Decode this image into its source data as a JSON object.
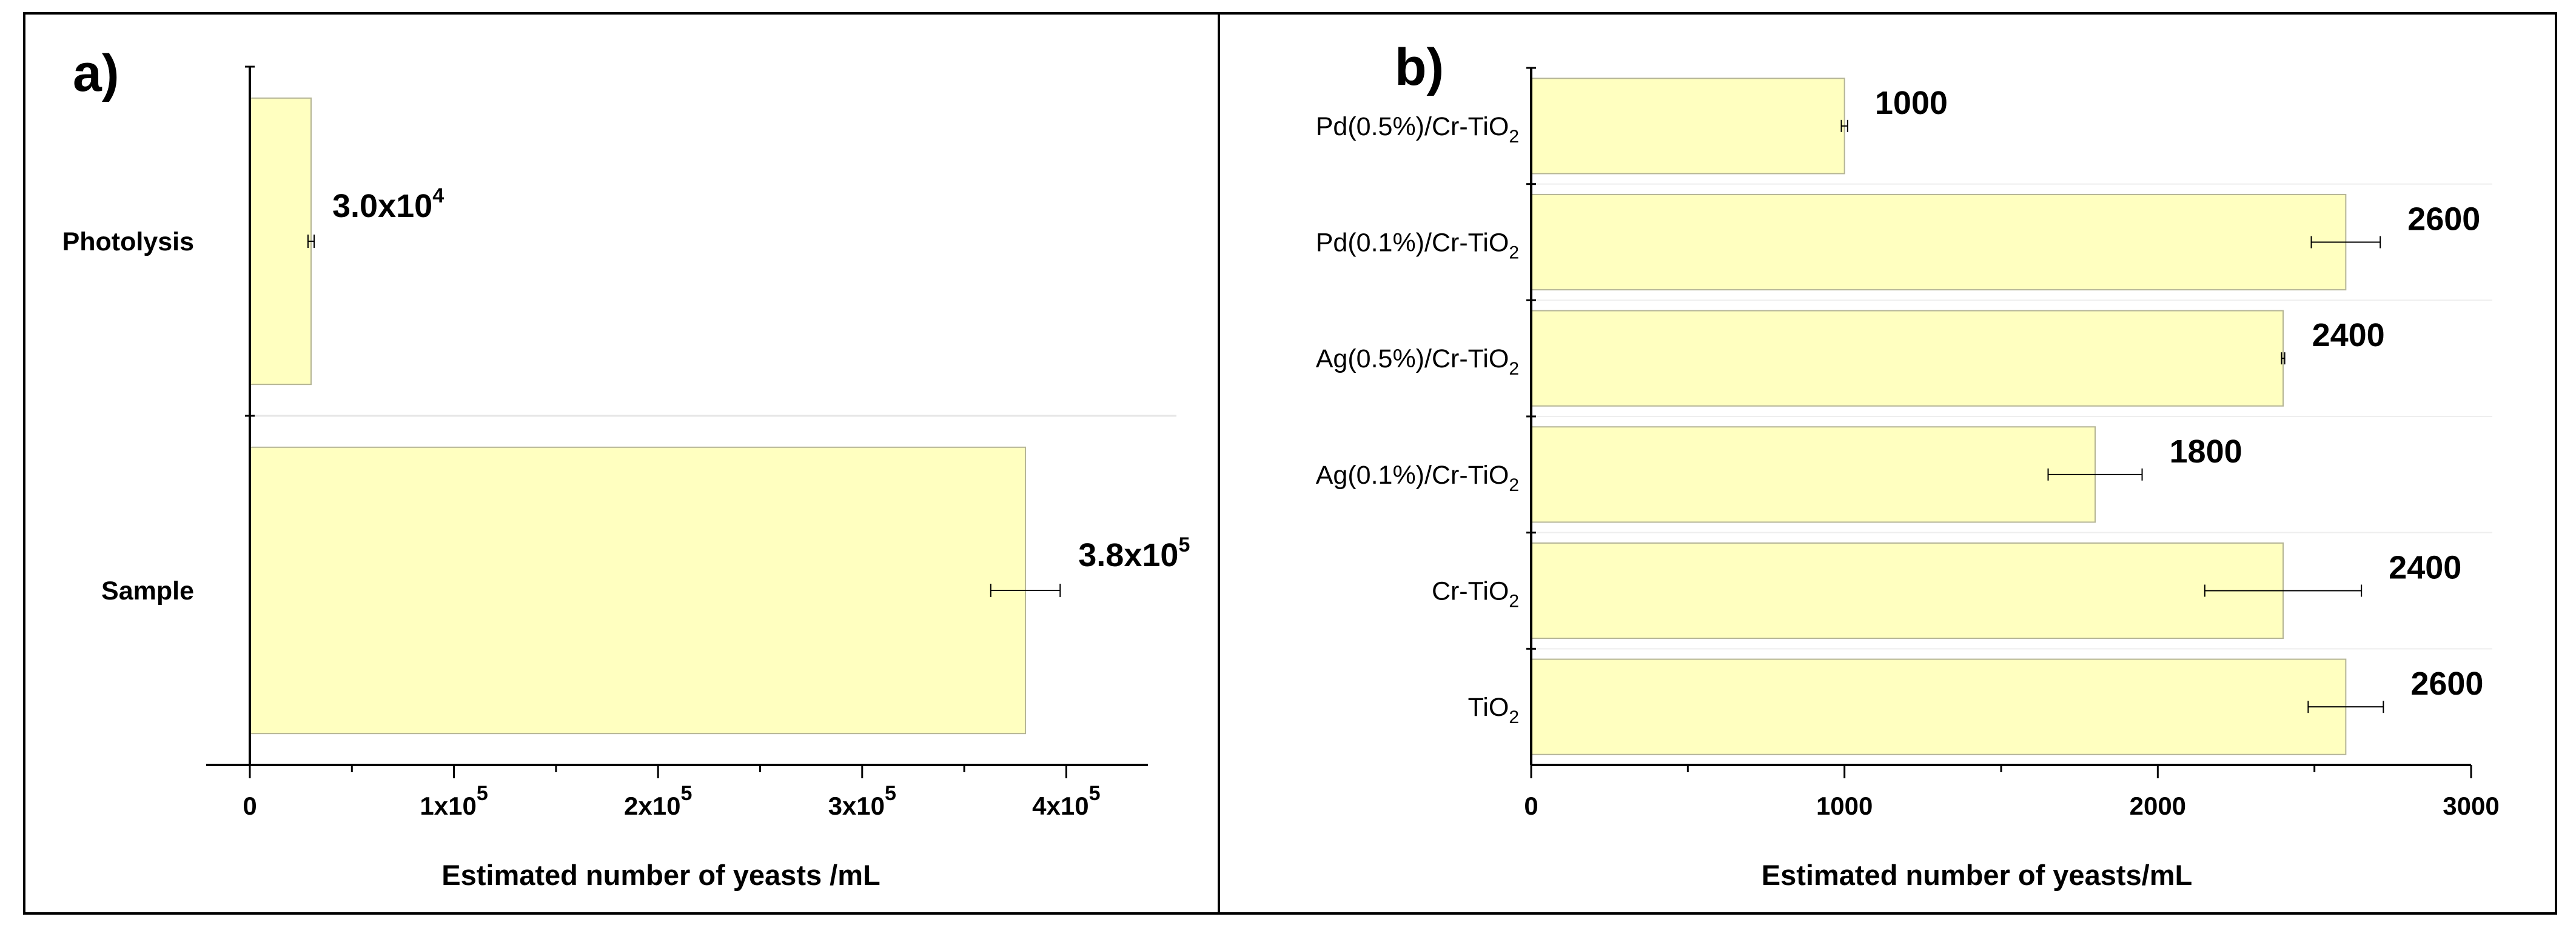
{
  "chart_data": [
    {
      "type": "bar",
      "orientation": "horizontal",
      "panel_label": "a)",
      "categories": [
        "Photolysis",
        "Sample"
      ],
      "values": [
        30000,
        380000
      ],
      "errors": [
        1500,
        17000
      ],
      "data_labels": [
        {
          "mantissa": "3.0x10",
          "exp": "4"
        },
        {
          "mantissa": "3.8x10",
          "exp": "5"
        }
      ],
      "xlabel": "Estimated number of yeasts /mL",
      "xlim": [
        0,
        440000
      ],
      "ticks": [
        0,
        100000,
        200000,
        300000,
        400000
      ],
      "tick_labels": [
        {
          "mantissa": "0",
          "exp": ""
        },
        {
          "mantissa": "1x10",
          "exp": "5"
        },
        {
          "mantissa": "2x10",
          "exp": "5"
        },
        {
          "mantissa": "3x10",
          "exp": "5"
        },
        {
          "mantissa": "4x10",
          "exp": "5"
        }
      ],
      "bar_color": "#ffffc0"
    },
    {
      "type": "bar",
      "orientation": "horizontal",
      "panel_label": "b)",
      "categories": [
        {
          "main": "Pd(0.5%)/Cr-TiO",
          "sub": "2"
        },
        {
          "main": "Pd(0.1%)/Cr-TiO",
          "sub": "2"
        },
        {
          "main": "Ag(0.5%)/Cr-TiO",
          "sub": "2"
        },
        {
          "main": "Ag(0.1%)/Cr-TiO",
          "sub": "2"
        },
        {
          "main": "Cr-TiO",
          "sub": "2"
        },
        {
          "main": "TiO",
          "sub": "2"
        }
      ],
      "values": [
        1000,
        2600,
        2400,
        1800,
        2400,
        2600
      ],
      "errors": [
        10,
        110,
        5,
        150,
        250,
        120
      ],
      "data_labels": [
        "1000",
        "2600",
        "2400",
        "1800",
        "2400",
        "2600"
      ],
      "xlabel": "Estimated number of yeasts/mL",
      "xlim": [
        0,
        3000
      ],
      "ticks": [
        0,
        1000,
        2000,
        3000
      ],
      "tick_labels": [
        "0",
        "1000",
        "2000",
        "3000"
      ],
      "bar_color": "#ffffc0"
    }
  ]
}
